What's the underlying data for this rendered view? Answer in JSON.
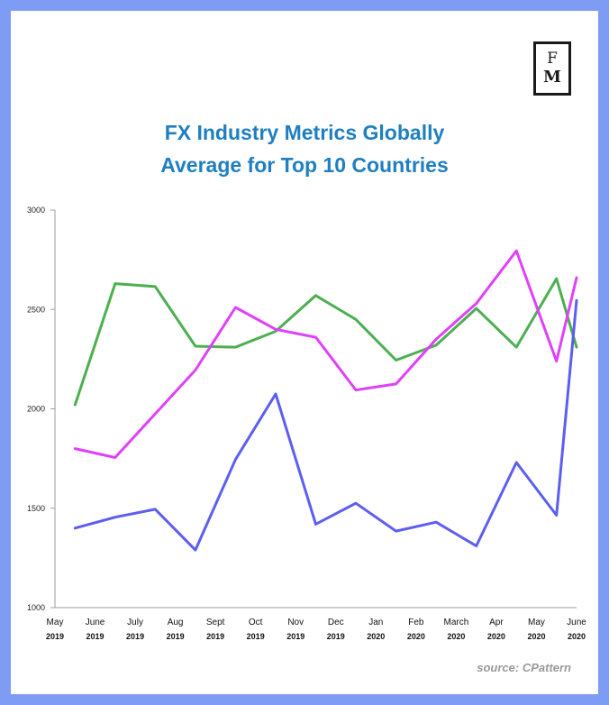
{
  "logo": {
    "line1": "F",
    "line2": "M"
  },
  "title_lines": [
    "FX Industry Metrics Globally",
    "Average for Top 10 Countries"
  ],
  "source": "source: CPattern",
  "colors": {
    "frame": "#7f9cf5",
    "title": "#1f7fc0",
    "axis": "#9e9e9e"
  },
  "chart_data": {
    "type": "line",
    "title": "FX Industry Metrics Globally Average for Top 10 Countries",
    "xlabel": "",
    "ylabel": "",
    "ylim": [
      1000,
      3000
    ],
    "yticks": [
      1000,
      1500,
      2000,
      2500,
      3000
    ],
    "grid": false,
    "legend": "none",
    "x_ticks": [
      [
        "May",
        "2019"
      ],
      [
        "June",
        "2019"
      ],
      [
        "July",
        "2019"
      ],
      [
        "Aug",
        "2019"
      ],
      [
        "Sept",
        "2019"
      ],
      [
        "Oct",
        "2019"
      ],
      [
        "Nov",
        "2019"
      ],
      [
        "Dec",
        "2019"
      ],
      [
        "Jan",
        "2020"
      ],
      [
        "Feb",
        "2020"
      ],
      [
        "March",
        "2020"
      ],
      [
        "Apr",
        "2020"
      ],
      [
        "May",
        "2020"
      ],
      [
        "June",
        "2020"
      ]
    ],
    "series": [
      {
        "color": "#4caf50",
        "x": [
          0.5,
          1.5,
          2.5,
          3.5,
          4.5,
          5.5,
          6.5,
          7.5,
          8.5,
          9.5,
          10.5,
          11.5,
          12.5,
          13.0
        ],
        "values": [
          2020,
          2630,
          2615,
          2315,
          2310,
          2390,
          2570,
          2450,
          2245,
          2320,
          2505,
          2310,
          2655,
          2310
        ]
      },
      {
        "color": "#e040fb",
        "x": [
          0.5,
          1.5,
          2.5,
          3.5,
          4.5,
          5.5,
          6.5,
          7.5,
          8.5,
          9.5,
          10.5,
          11.5,
          12.5,
          13.0
        ],
        "values": [
          1800,
          1755,
          1975,
          2195,
          2510,
          2400,
          2360,
          2095,
          2125,
          2350,
          2530,
          2795,
          2240,
          2660
        ]
      },
      {
        "color": "#5c5ef0",
        "x": [
          0.5,
          1.5,
          2.5,
          3.5,
          4.5,
          5.5,
          6.5,
          7.5,
          8.5,
          9.5,
          10.5,
          11.5,
          12.5,
          13.0
        ],
        "values": [
          1400,
          1455,
          1495,
          1290,
          1745,
          2075,
          1420,
          1525,
          1385,
          1430,
          1310,
          1730,
          1465,
          2545
        ]
      }
    ]
  }
}
